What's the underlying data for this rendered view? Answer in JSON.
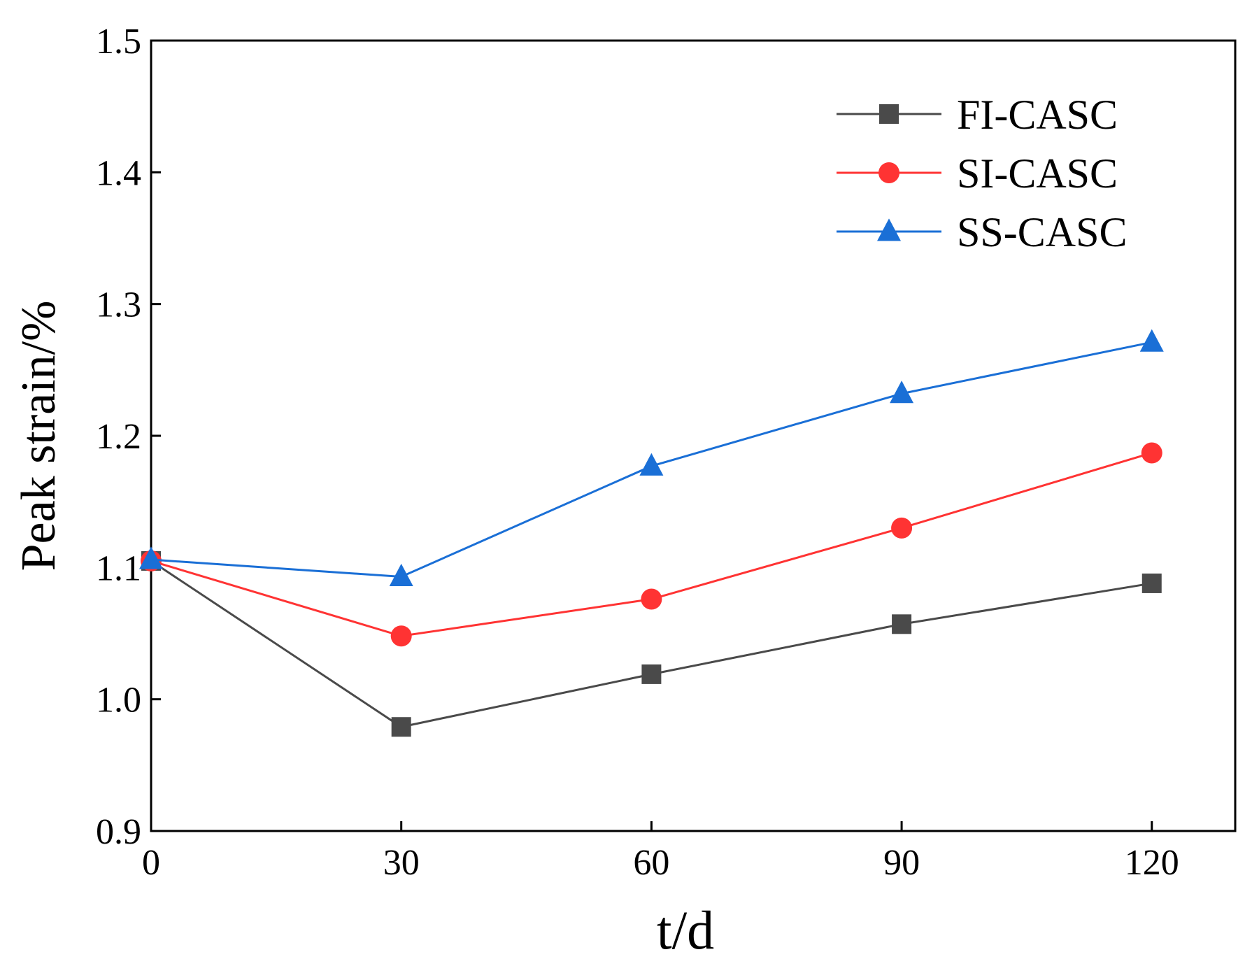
{
  "chart_data": {
    "type": "line",
    "title": "",
    "xlabel": "t/d",
    "ylabel": "Peak strain/%",
    "x": [
      0,
      30,
      60,
      90,
      120
    ],
    "xlim": [
      0,
      130
    ],
    "ylim": [
      0.9,
      1.5
    ],
    "xticks": [
      "0",
      "30",
      "60",
      "90",
      "120"
    ],
    "yticks": [
      "0.9",
      "1.0",
      "1.1",
      "1.2",
      "1.3",
      "1.4",
      "1.5"
    ],
    "grid": false,
    "legend_position": "top-right",
    "series": [
      {
        "name": "FI-CASC",
        "marker": "square",
        "color": "#4a4a4a",
        "values": [
          1.105,
          0.979,
          1.019,
          1.057,
          1.088
        ]
      },
      {
        "name": "SI-CASC",
        "marker": "circle",
        "color": "#ff3333",
        "values": [
          1.105,
          1.048,
          1.076,
          1.13,
          1.187
        ]
      },
      {
        "name": "SS-CASC",
        "marker": "triangle",
        "color": "#1a6fd6",
        "values": [
          1.106,
          1.093,
          1.177,
          1.232,
          1.271
        ]
      }
    ]
  }
}
